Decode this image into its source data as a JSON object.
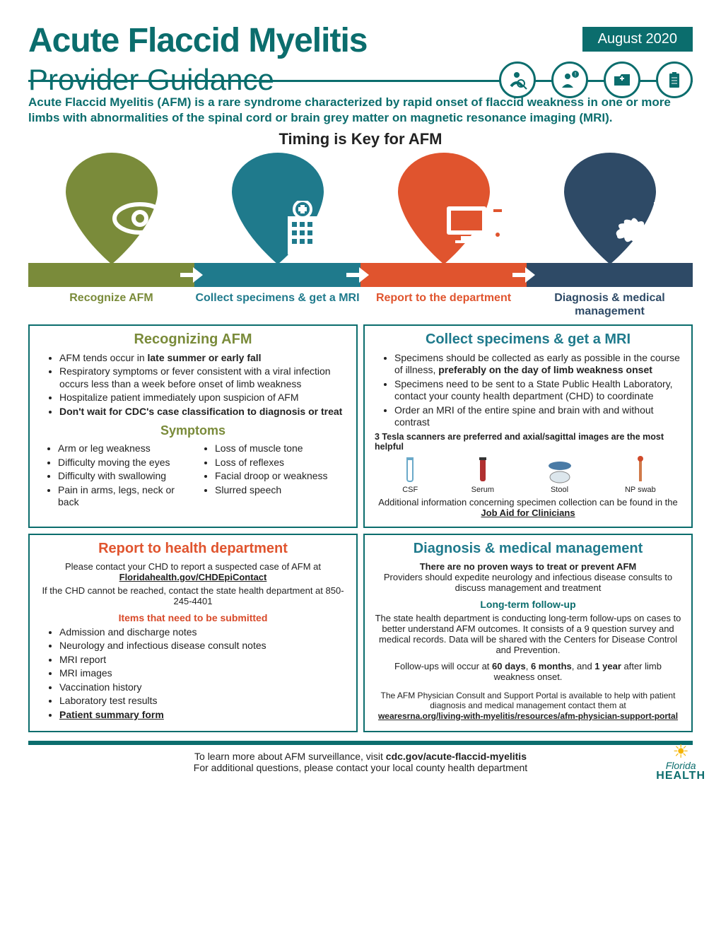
{
  "header": {
    "title": "Acute Flaccid Myelitis",
    "subtitle": "Provider Guidance",
    "date": "August 2020",
    "icons": [
      "person-magnify-icon",
      "person-alert-icon",
      "folder-plus-icon",
      "clipboard-icon"
    ]
  },
  "intro": "Acute Flaccid Myelitis (AFM) is a rare syndrome characterized by rapid onset of flaccid weakness in one or more limbs with abnormalities of the spinal cord or brain grey matter on magnetic resonance imaging (MRI).",
  "timing_header": "Timing is Key for AFM",
  "pins": [
    {
      "color": "#7a8b3a",
      "label": "Recognize AFM",
      "label_color": "#7a8b3a",
      "icon": "eye-icon"
    },
    {
      "color": "#1f7a8c",
      "label": "Collect specimens & get a MRI",
      "label_color": "#1f7a8c",
      "icon": "hospital-icon"
    },
    {
      "color": "#e0542e",
      "label": "Report to the department",
      "label_color": "#e0542e",
      "icon": "computer-icon"
    },
    {
      "color": "#2e4a66",
      "label": "Diagnosis & medical management",
      "label_color": "#2e4a66",
      "icon": "medical-icon"
    }
  ],
  "recognize": {
    "title": "Recognizing AFM",
    "title_color": "#7a8b3a",
    "bullets_html": [
      "AFM tends occur in <b>late summer or early fall</b>",
      "Respiratory symptoms or fever consistent with a viral infection occurs less than a week before onset of limb weakness",
      "Hospitalize patient immediately upon suspicion of AFM",
      "<b>Don't wait for CDC's case classification to diagnosis or treat</b>"
    ],
    "symptoms_header": "Symptoms",
    "symptoms_left": [
      "Arm or leg weakness",
      "Difficulty moving the eyes",
      "Difficulty with swallowing",
      "Pain in arms, legs, neck or back"
    ],
    "symptoms_right": [
      "Loss of muscle tone",
      "Loss of reflexes",
      "Facial droop or weakness",
      "Slurred speech"
    ]
  },
  "collect": {
    "title": "Collect specimens & get a MRI",
    "title_color": "#1f7a8c",
    "bullets_html": [
      "Specimens should be collected as early as possible in the course of illness, <b>preferably on the day of limb weakness onset</b>",
      "Specimens need to be sent to a State Public Health Laboratory, contact your county health department (CHD) to coordinate",
      "Order an MRI of the entire spine and brain with and without contrast"
    ],
    "scanner_note": "3 Tesla scanners are preferred and axial/sagittal images are the most helpful",
    "specimens": [
      "CSF",
      "Serum",
      "Stool",
      "NP swab"
    ],
    "addl": "Additional information concerning specimen collection can be found in the",
    "addl_link": "Job Aid for Clinicians"
  },
  "report": {
    "title": "Report to health department",
    "title_color": "#e0542e",
    "line1": "Please contact your CHD to report a suspected case of AFM at",
    "link1": "Floridahealth.gov/CHDEpiContact",
    "line2": "If the CHD cannot be reached, contact the state health department at 850-245-4401",
    "items_header": "Items that need to be submitted",
    "items": [
      "Admission and discharge notes",
      "Neurology and infectious disease consult notes",
      "MRI report",
      "MRI images",
      "Vaccination history",
      "Laboratory test results",
      "<b><u>Patient summary form</u></b>"
    ]
  },
  "diagnosis": {
    "title": "Diagnosis & medical management",
    "title_color": "#1f7a8c",
    "line1": "There are no proven ways to treat or prevent AFM",
    "line2": "Providers should expedite neurology and infectious disease consults to discuss management and treatment",
    "followup_header": "Long-term follow-up",
    "followup1": "The state health department is conducting long-term follow-ups on cases to better understand AFM outcomes. It consists of a 9 question survey and medical records. Data will be shared with the Centers for Disease Control and Prevention.",
    "followup2_html": "Follow-ups will occur at <b>60 days</b>, <b>6 months</b>, and <b>1 year</b> after limb weakness onset.",
    "portal1": "The AFM Physician Consult and Support Portal is available to help with patient diagnosis and medical management contact them at",
    "portal_link": "wearesrna.org/living-with-myelitis/resources/afm-physician-support-portal"
  },
  "footer": {
    "line1_html": "To learn more about AFM surveillance, visit <b>cdc.gov/acute-flaccid-myelitis</b>",
    "line2": "For additional questions, please contact your local county health department",
    "logo_top": "Florida",
    "logo_bottom": "HEALTH"
  }
}
